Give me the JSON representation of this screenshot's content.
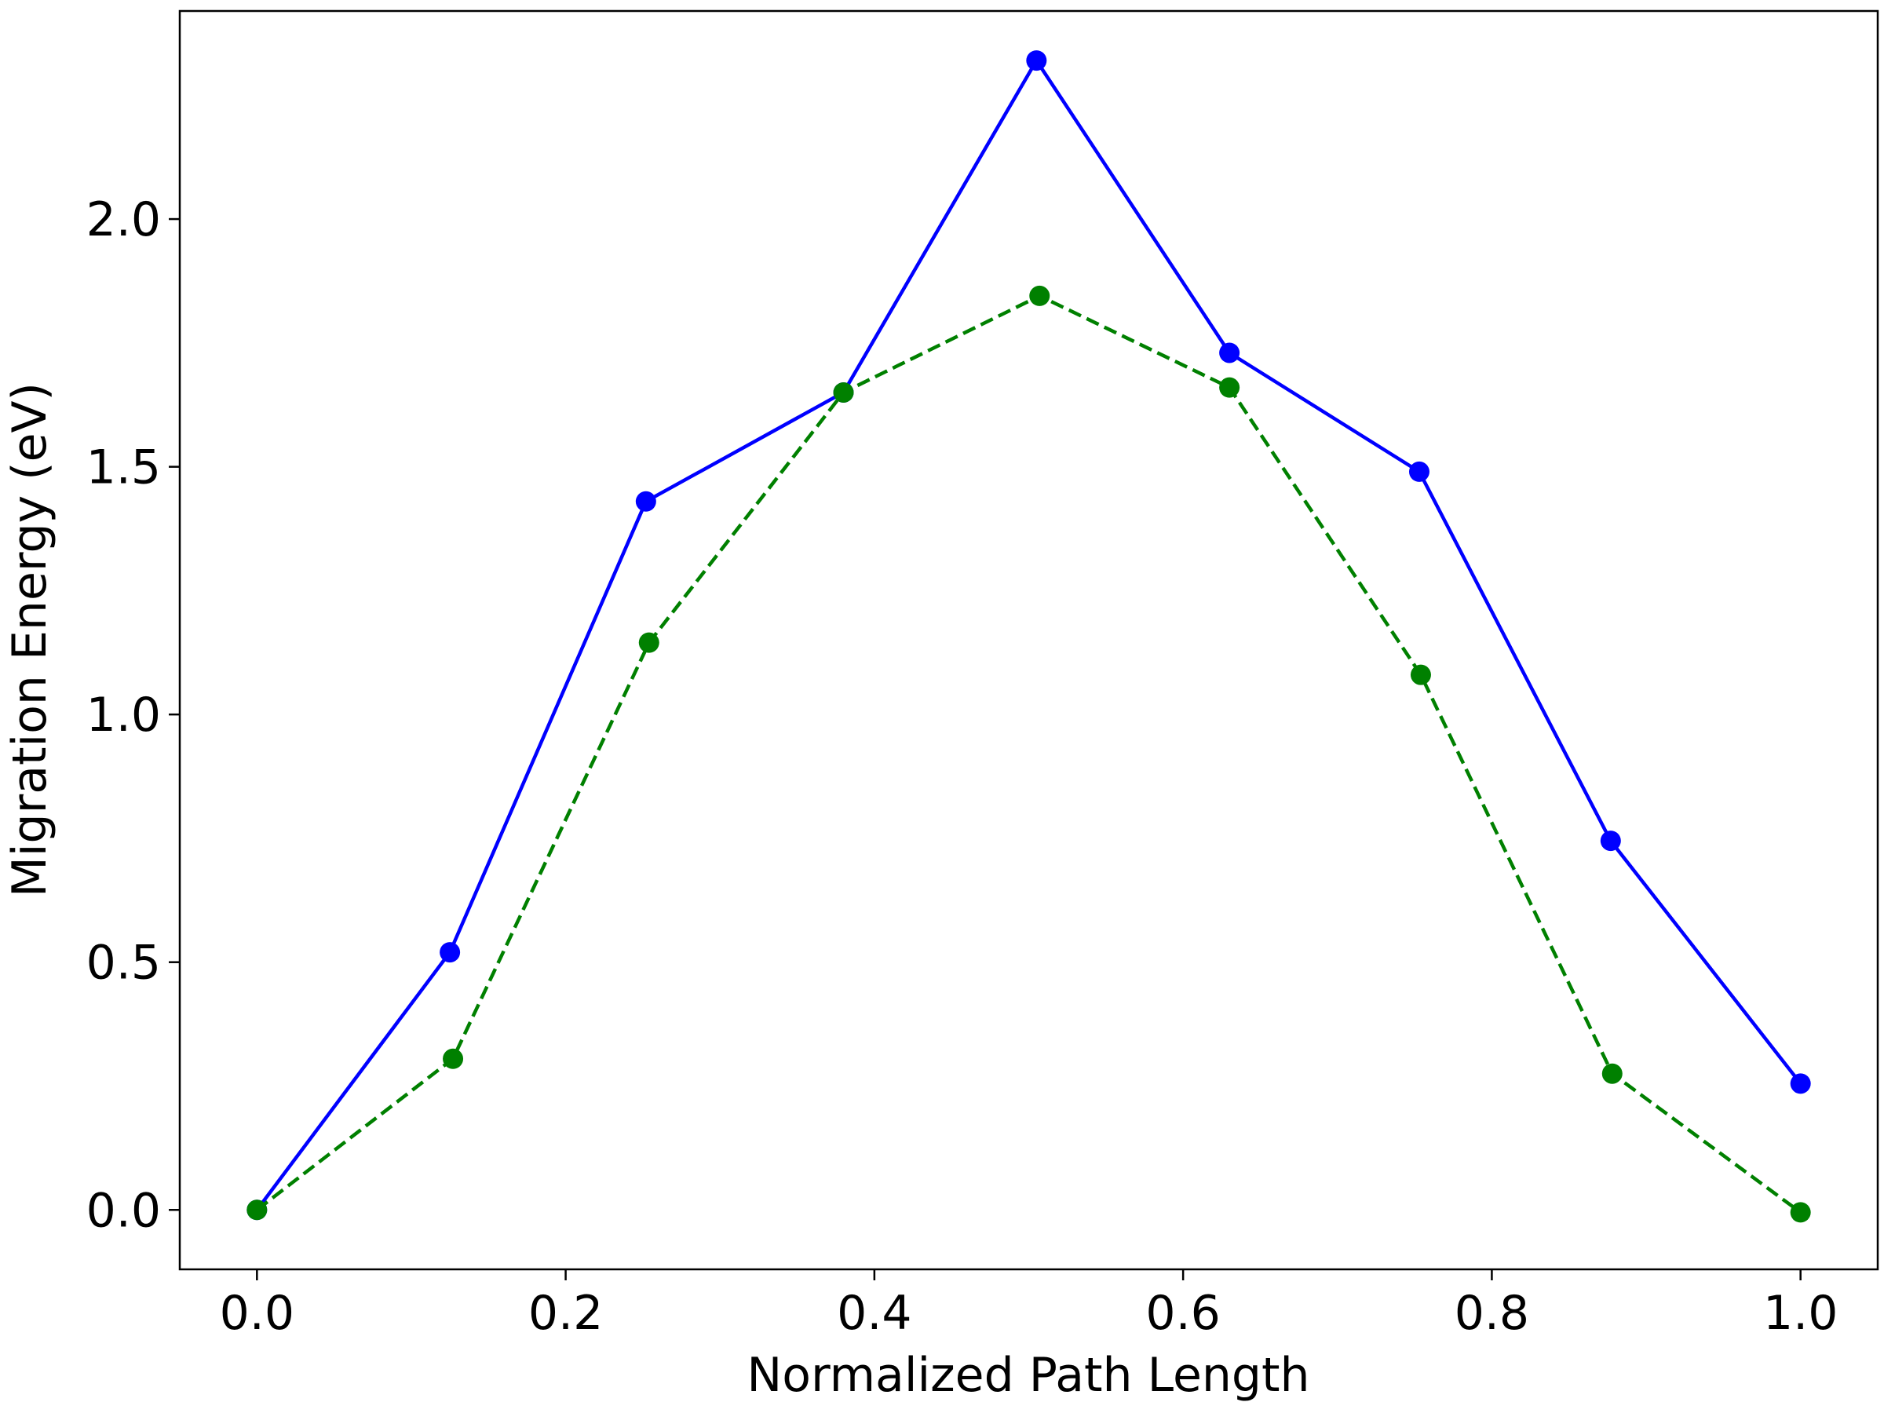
{
  "chart_data": {
    "type": "line",
    "title": "",
    "xlabel": "Normalized Path Length",
    "ylabel": "Migration Energy (eV)",
    "xlim": [
      -0.05,
      1.05
    ],
    "ylim": [
      -0.12,
      2.42
    ],
    "xticks": [
      0.0,
      0.2,
      0.4,
      0.6,
      0.8,
      1.0
    ],
    "xtick_labels": [
      "0.0",
      "0.2",
      "0.4",
      "0.6",
      "0.8",
      "1.0"
    ],
    "yticks": [
      0.0,
      0.5,
      1.0,
      1.5,
      2.0
    ],
    "ytick_labels": [
      "0.0",
      "0.5",
      "1.0",
      "1.5",
      "2.0"
    ],
    "grid": false,
    "legend": "none",
    "series": [
      {
        "color": "#0000ff",
        "line_style": "solid",
        "marker": "circle",
        "x": [
          0.0,
          0.125,
          0.252,
          0.38,
          0.505,
          0.63,
          0.753,
          0.877,
          1.0
        ],
        "y": [
          0.0,
          0.52,
          1.43,
          1.65,
          2.32,
          1.73,
          1.49,
          0.745,
          0.255
        ]
      },
      {
        "color": "#008000",
        "line_style": "dashed",
        "marker": "circle",
        "x": [
          0.0,
          0.127,
          0.254,
          0.38,
          0.507,
          0.63,
          0.754,
          0.878,
          1.0
        ],
        "y": [
          0.0,
          0.305,
          1.145,
          1.65,
          1.845,
          1.66,
          1.08,
          0.275,
          -0.005
        ]
      }
    ]
  }
}
